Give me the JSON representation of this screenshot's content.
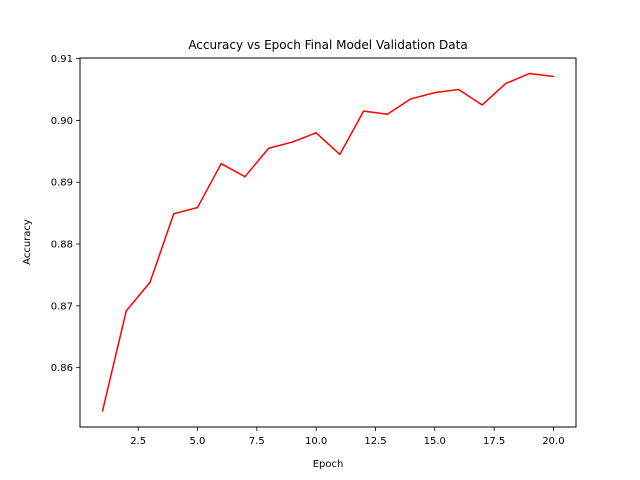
{
  "chart_data": {
    "type": "line",
    "title": "Accuracy vs Epoch Final Model Validation Data",
    "xlabel": "Epoch",
    "ylabel": "Accuracy",
    "xlim": [
      0.05,
      20.95
    ],
    "ylim": [
      0.8504,
      0.9101
    ],
    "xticks": [
      2.5,
      5.0,
      7.5,
      10.0,
      12.5,
      15.0,
      17.5,
      20.0
    ],
    "xtick_labels": [
      "2.5",
      "5.0",
      "7.5",
      "10.0",
      "12.5",
      "15.0",
      "17.5",
      "20.0"
    ],
    "yticks": [
      0.86,
      0.87,
      0.88,
      0.89,
      0.9,
      0.91
    ],
    "ytick_labels": [
      "0.86",
      "0.87",
      "0.88",
      "0.89",
      "0.90",
      "0.91"
    ],
    "grid": false,
    "series": [
      {
        "color": "#ff0000",
        "x": [
          1,
          2,
          3,
          4,
          5,
          6,
          7,
          8,
          9,
          10,
          11,
          12,
          13,
          14,
          15,
          16,
          17,
          18,
          19,
          20
        ],
        "y": [
          0.853,
          0.8692,
          0.8738,
          0.8849,
          0.8859,
          0.893,
          0.8909,
          0.8955,
          0.8965,
          0.898,
          0.8945,
          0.9015,
          0.901,
          0.9035,
          0.9045,
          0.905,
          0.9025,
          0.906,
          0.9076,
          0.9071
        ]
      }
    ]
  }
}
